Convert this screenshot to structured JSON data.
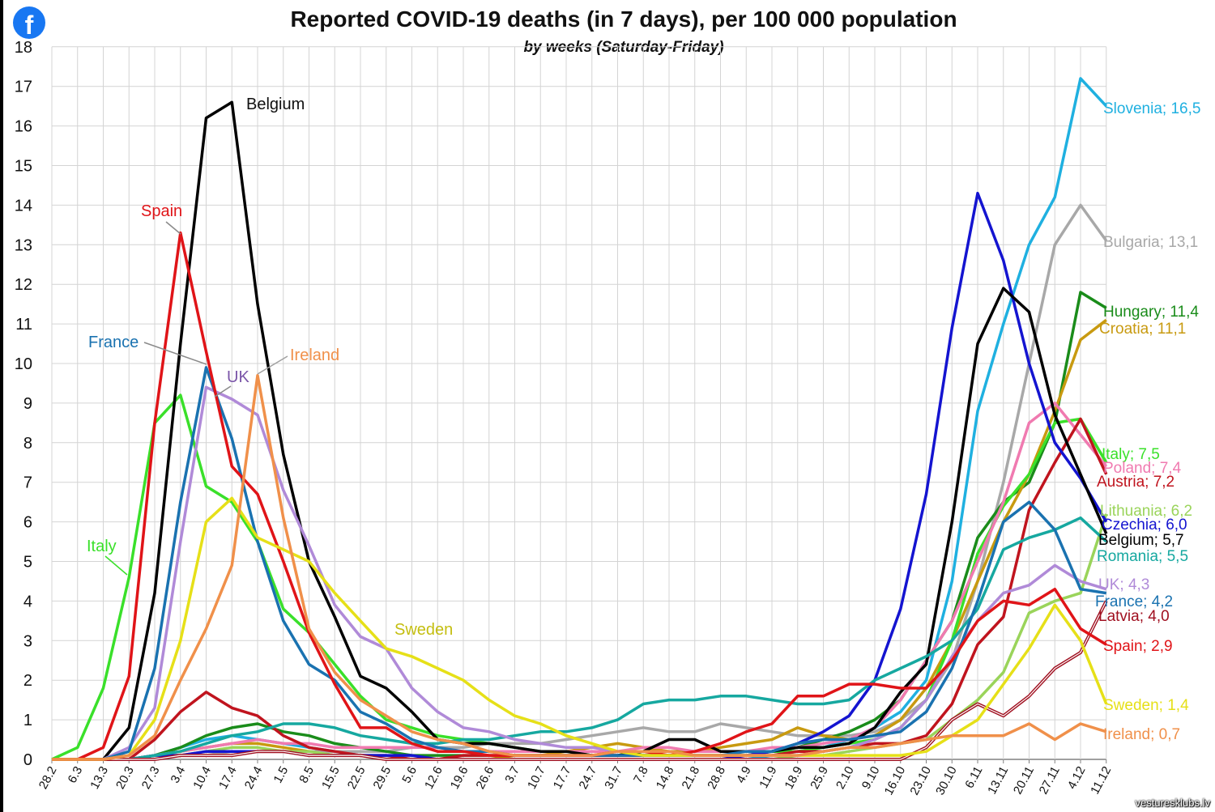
{
  "app": {
    "watermark": "vesturesklubs.lv"
  },
  "colors": {
    "Slovenia": "#1fb0e0",
    "Bulgaria": "#a8a8a8",
    "Hungary": "#1a8c1a",
    "Croatia": "#c89a10",
    "Italy": "#3ae02a",
    "Poland": "#f07ab0",
    "Austria": "#c0141e",
    "Lithuania": "#9ad45a",
    "Czechia": "#1414d0",
    "Belgium": "#000000",
    "Romania": "#16a8a0",
    "UK": "#b08ad8",
    "France": "#1a72b0",
    "Latvia": "#a01020",
    "Spain": "#e01418",
    "Sweden": "#e6e018",
    "Ireland": "#f0904a"
  },
  "chart_data": {
    "type": "line",
    "title": "Reported COVID-19 deaths (in 7 days), per 100 000 population",
    "subtitle": "by weeks (Saturday-Friday)",
    "xlabel": "",
    "ylabel": "",
    "ylim": [
      0,
      18
    ],
    "yticks": [
      0,
      1,
      2,
      3,
      4,
      5,
      6,
      7,
      8,
      9,
      10,
      11,
      12,
      13,
      14,
      15,
      16,
      17,
      18
    ],
    "grid": true,
    "categories": [
      "28.2",
      "6.3",
      "13.3",
      "20.3",
      "27.3",
      "3.4",
      "10.4",
      "17.4",
      "24.4",
      "1.5",
      "8.5",
      "15.5",
      "22.5",
      "29.5",
      "5.6",
      "12.6",
      "19.6",
      "26.6",
      "3.7",
      "10.7",
      "17.7",
      "24.7",
      "31.7",
      "7.8",
      "14.8",
      "21.8",
      "28.8",
      "4.9",
      "11.9",
      "18.9",
      "25.9",
      "2.10",
      "9.10",
      "16.10",
      "23.10",
      "30.10",
      "6.11",
      "13.11",
      "20.11",
      "27.11",
      "4.12",
      "11.12"
    ],
    "peak_labels": [
      {
        "series": "Belgium",
        "text": "Belgium"
      },
      {
        "series": "Spain",
        "text": "Spain"
      },
      {
        "series": "France",
        "text": "France"
      },
      {
        "series": "Ireland",
        "text": "Ireland"
      },
      {
        "series": "UK",
        "text": "UK"
      },
      {
        "series": "Italy",
        "text": "Italy"
      },
      {
        "series": "Sweden",
        "text": "Sweden"
      }
    ],
    "series": [
      {
        "name": "Slovenia",
        "end_label": "Slovenia; 16,5",
        "values": [
          0,
          0,
          0,
          0,
          0.1,
          0.3,
          0.5,
          0.6,
          0.5,
          0.4,
          0.3,
          0.2,
          0.1,
          0.1,
          0,
          0,
          0,
          0,
          0,
          0,
          0,
          0,
          0,
          0,
          0,
          0,
          0,
          0,
          0.1,
          0.2,
          0.3,
          0.5,
          0.8,
          1.2,
          2.0,
          4.5,
          8.8,
          11.0,
          13.0,
          14.2,
          17.2,
          16.5
        ]
      },
      {
        "name": "Bulgaria",
        "end_label": "Bulgaria; 13,1",
        "values": [
          0,
          0,
          0,
          0,
          0,
          0.1,
          0.1,
          0.2,
          0.2,
          0.2,
          0.2,
          0.2,
          0.2,
          0.2,
          0.3,
          0.3,
          0.3,
          0.4,
          0.4,
          0.4,
          0.5,
          0.6,
          0.7,
          0.8,
          0.7,
          0.7,
          0.9,
          0.8,
          0.7,
          0.6,
          0.6,
          0.6,
          0.7,
          1.0,
          1.5,
          2.5,
          4.5,
          7.0,
          10.0,
          13.0,
          14.0,
          13.1
        ]
      },
      {
        "name": "Hungary",
        "end_label": "Hungary; 11,4",
        "values": [
          0,
          0,
          0,
          0,
          0.1,
          0.3,
          0.6,
          0.8,
          0.9,
          0.7,
          0.6,
          0.4,
          0.3,
          0.2,
          0.1,
          0.1,
          0.1,
          0.1,
          0.1,
          0.1,
          0.1,
          0.1,
          0.1,
          0.1,
          0.1,
          0.1,
          0.1,
          0.1,
          0.2,
          0.3,
          0.5,
          0.7,
          1.0,
          1.5,
          2.5,
          3.5,
          5.6,
          6.5,
          7.0,
          8.5,
          11.8,
          11.4
        ]
      },
      {
        "name": "Croatia",
        "end_label": "Croatia;  11,1",
        "values": [
          0,
          0,
          0,
          0,
          0.1,
          0.2,
          0.3,
          0.4,
          0.4,
          0.3,
          0.2,
          0.1,
          0.1,
          0,
          0,
          0,
          0,
          0,
          0.1,
          0.1,
          0.2,
          0.3,
          0.4,
          0.3,
          0.2,
          0.2,
          0.3,
          0.4,
          0.5,
          0.8,
          0.6,
          0.5,
          0.6,
          1.0,
          1.8,
          3.0,
          4.5,
          6.0,
          7.2,
          8.8,
          10.6,
          11.1
        ]
      },
      {
        "name": "Italy",
        "end_label": "Italy; 7,5",
        "values": [
          0,
          0.3,
          1.8,
          4.6,
          8.5,
          9.2,
          6.9,
          6.5,
          5.5,
          3.8,
          3.2,
          2.4,
          1.6,
          1.0,
          0.8,
          0.6,
          0.5,
          0.4,
          0.3,
          0.2,
          0.2,
          0.1,
          0.1,
          0.1,
          0.1,
          0.1,
          0.1,
          0.1,
          0.2,
          0.2,
          0.3,
          0.4,
          0.5,
          0.8,
          1.5,
          3.0,
          5.2,
          6.4,
          7.2,
          8.5,
          8.6,
          7.5
        ]
      },
      {
        "name": "Poland",
        "end_label": "Poland; 7,4",
        "values": [
          0,
          0,
          0,
          0,
          0.1,
          0.2,
          0.3,
          0.4,
          0.5,
          0.4,
          0.4,
          0.3,
          0.3,
          0.3,
          0.3,
          0.3,
          0.2,
          0.2,
          0.2,
          0.2,
          0.2,
          0.2,
          0.2,
          0.3,
          0.3,
          0.2,
          0.2,
          0.2,
          0.3,
          0.3,
          0.4,
          0.5,
          0.8,
          1.5,
          2.5,
          3.5,
          5.0,
          6.5,
          8.5,
          9.0,
          8.2,
          7.4
        ]
      },
      {
        "name": "Austria",
        "end_label": "Austria; 7,2",
        "values": [
          0,
          0,
          0,
          0,
          0.5,
          1.2,
          1.7,
          1.3,
          1.1,
          0.6,
          0.3,
          0.2,
          0.1,
          0.1,
          0,
          0,
          0.1,
          0.1,
          0.1,
          0.1,
          0.1,
          0.1,
          0.1,
          0.1,
          0.1,
          0.1,
          0.1,
          0.1,
          0.1,
          0.2,
          0.2,
          0.3,
          0.4,
          0.4,
          0.6,
          1.4,
          2.9,
          3.6,
          6.3,
          7.5,
          8.6,
          7.2
        ]
      },
      {
        "name": "Lithuania",
        "end_label": "Lithuania; 6,2",
        "values": [
          0,
          0,
          0,
          0,
          0.1,
          0.1,
          0.2,
          0.3,
          0.3,
          0.2,
          0.2,
          0.1,
          0.1,
          0,
          0,
          0,
          0,
          0,
          0,
          0,
          0,
          0,
          0,
          0,
          0,
          0,
          0,
          0,
          0,
          0.1,
          0.1,
          0.2,
          0.3,
          0.4,
          0.5,
          1.0,
          1.5,
          2.2,
          3.7,
          4.0,
          4.2,
          6.2
        ]
      },
      {
        "name": "Czechia",
        "end_label": "Czechia; 6,0",
        "values": [
          0,
          0,
          0,
          0,
          0.1,
          0.1,
          0.2,
          0.2,
          0.2,
          0.2,
          0.1,
          0.1,
          0.1,
          0.1,
          0.1,
          0,
          0,
          0,
          0,
          0,
          0,
          0,
          0,
          0,
          0,
          0,
          0,
          0.1,
          0.2,
          0.4,
          0.7,
          1.1,
          2.0,
          3.8,
          6.7,
          10.9,
          14.3,
          12.6,
          10.0,
          8.0,
          7.1,
          6.0
        ]
      },
      {
        "name": "Belgium",
        "end_label": "Belgium; 5,7",
        "values": [
          0,
          0,
          0,
          0.8,
          4.2,
          10.5,
          16.2,
          16.6,
          11.5,
          7.7,
          5.0,
          3.6,
          2.1,
          1.8,
          1.2,
          0.5,
          0.4,
          0.4,
          0.3,
          0.2,
          0.2,
          0.1,
          0.1,
          0.2,
          0.5,
          0.5,
          0.2,
          0.2,
          0.2,
          0.3,
          0.3,
          0.4,
          0.8,
          1.7,
          2.4,
          6.0,
          10.5,
          11.9,
          11.3,
          8.7,
          7.2,
          5.7
        ]
      },
      {
        "name": "Romania",
        "end_label": "Romania; 5,5",
        "values": [
          0,
          0,
          0,
          0,
          0.1,
          0.2,
          0.4,
          0.6,
          0.7,
          0.9,
          0.9,
          0.8,
          0.6,
          0.5,
          0.4,
          0.4,
          0.5,
          0.5,
          0.6,
          0.7,
          0.7,
          0.8,
          1.0,
          1.4,
          1.5,
          1.5,
          1.6,
          1.6,
          1.5,
          1.4,
          1.4,
          1.5,
          2.0,
          2.3,
          2.6,
          3.0,
          3.8,
          5.3,
          5.6,
          5.8,
          6.1,
          5.5
        ]
      },
      {
        "name": "UK",
        "end_label": "UK; 4,3",
        "values": [
          0,
          0,
          0,
          0.3,
          1.3,
          5.5,
          9.4,
          9.1,
          8.7,
          6.8,
          5.4,
          3.9,
          3.1,
          2.8,
          1.8,
          1.2,
          0.8,
          0.7,
          0.5,
          0.4,
          0.3,
          0.3,
          0.2,
          0.2,
          0.2,
          0.1,
          0.1,
          0.1,
          0.1,
          0.1,
          0.2,
          0.3,
          0.5,
          0.8,
          1.5,
          2.6,
          3.5,
          4.2,
          4.4,
          4.9,
          4.5,
          4.3
        ]
      },
      {
        "name": "France",
        "end_label": "France; 4,2",
        "values": [
          0,
          0,
          0,
          0.2,
          2.3,
          6.5,
          9.9,
          8.1,
          5.5,
          3.5,
          2.4,
          2.0,
          1.2,
          0.9,
          0.5,
          0.3,
          0.2,
          0.2,
          0.1,
          0.1,
          0.1,
          0.1,
          0.1,
          0.1,
          0.1,
          0.1,
          0.1,
          0.2,
          0.2,
          0.4,
          0.5,
          0.5,
          0.6,
          0.7,
          1.2,
          2.3,
          4.0,
          6.0,
          6.5,
          5.8,
          4.3,
          4.2
        ]
      },
      {
        "name": "Latvia",
        "end_label": "Latvia; 4,0",
        "values": [
          0,
          0,
          0,
          0,
          0,
          0.1,
          0.1,
          0.1,
          0.2,
          0.2,
          0.1,
          0.1,
          0.1,
          0,
          0,
          0,
          0,
          0,
          0,
          0,
          0,
          0,
          0,
          0,
          0,
          0,
          0,
          0,
          0,
          0,
          0,
          0,
          0,
          0,
          0.3,
          1.0,
          1.4,
          1.1,
          1.6,
          2.3,
          2.7,
          4.0
        ]
      },
      {
        "name": "Spain",
        "end_label": "Spain; 2,9",
        "values": [
          0,
          0,
          0.3,
          2.1,
          8.5,
          13.3,
          10.3,
          7.4,
          6.7,
          5.0,
          3.2,
          1.9,
          0.8,
          0.8,
          0.4,
          0.2,
          0.2,
          0.1,
          0.1,
          0.1,
          0.1,
          0.1,
          0.2,
          0.2,
          0.1,
          0.2,
          0.4,
          0.7,
          0.9,
          1.6,
          1.6,
          1.9,
          1.9,
          1.8,
          1.8,
          2.5,
          3.5,
          4.0,
          3.9,
          4.3,
          3.3,
          2.9
        ]
      },
      {
        "name": "Sweden",
        "end_label": "Sweden; 1,4",
        "values": [
          0,
          0,
          0,
          0.1,
          1.0,
          3.0,
          6.0,
          6.6,
          5.6,
          5.3,
          5.0,
          4.2,
          3.5,
          2.8,
          2.6,
          2.3,
          2.0,
          1.5,
          1.1,
          0.9,
          0.6,
          0.4,
          0.2,
          0.1,
          0.1,
          0.1,
          0.1,
          0.1,
          0.1,
          0.1,
          0.1,
          0.1,
          0.1,
          0.1,
          0.2,
          0.6,
          1.0,
          1.9,
          2.8,
          3.9,
          3.0,
          1.4
        ]
      },
      {
        "name": "Ireland",
        "end_label": "Ireland; 0,7",
        "values": [
          0,
          0,
          0,
          0.1,
          0.6,
          2.0,
          3.3,
          4.9,
          9.7,
          6.1,
          3.3,
          2.2,
          1.5,
          1.1,
          0.7,
          0.5,
          0.4,
          0.2,
          0.1,
          0.1,
          0.1,
          0.1,
          0.2,
          0.2,
          0.2,
          0.1,
          0.1,
          0.1,
          0.1,
          0.1,
          0.2,
          0.3,
          0.3,
          0.4,
          0.5,
          0.6,
          0.6,
          0.6,
          0.9,
          0.5,
          0.9,
          0.7
        ]
      }
    ]
  }
}
